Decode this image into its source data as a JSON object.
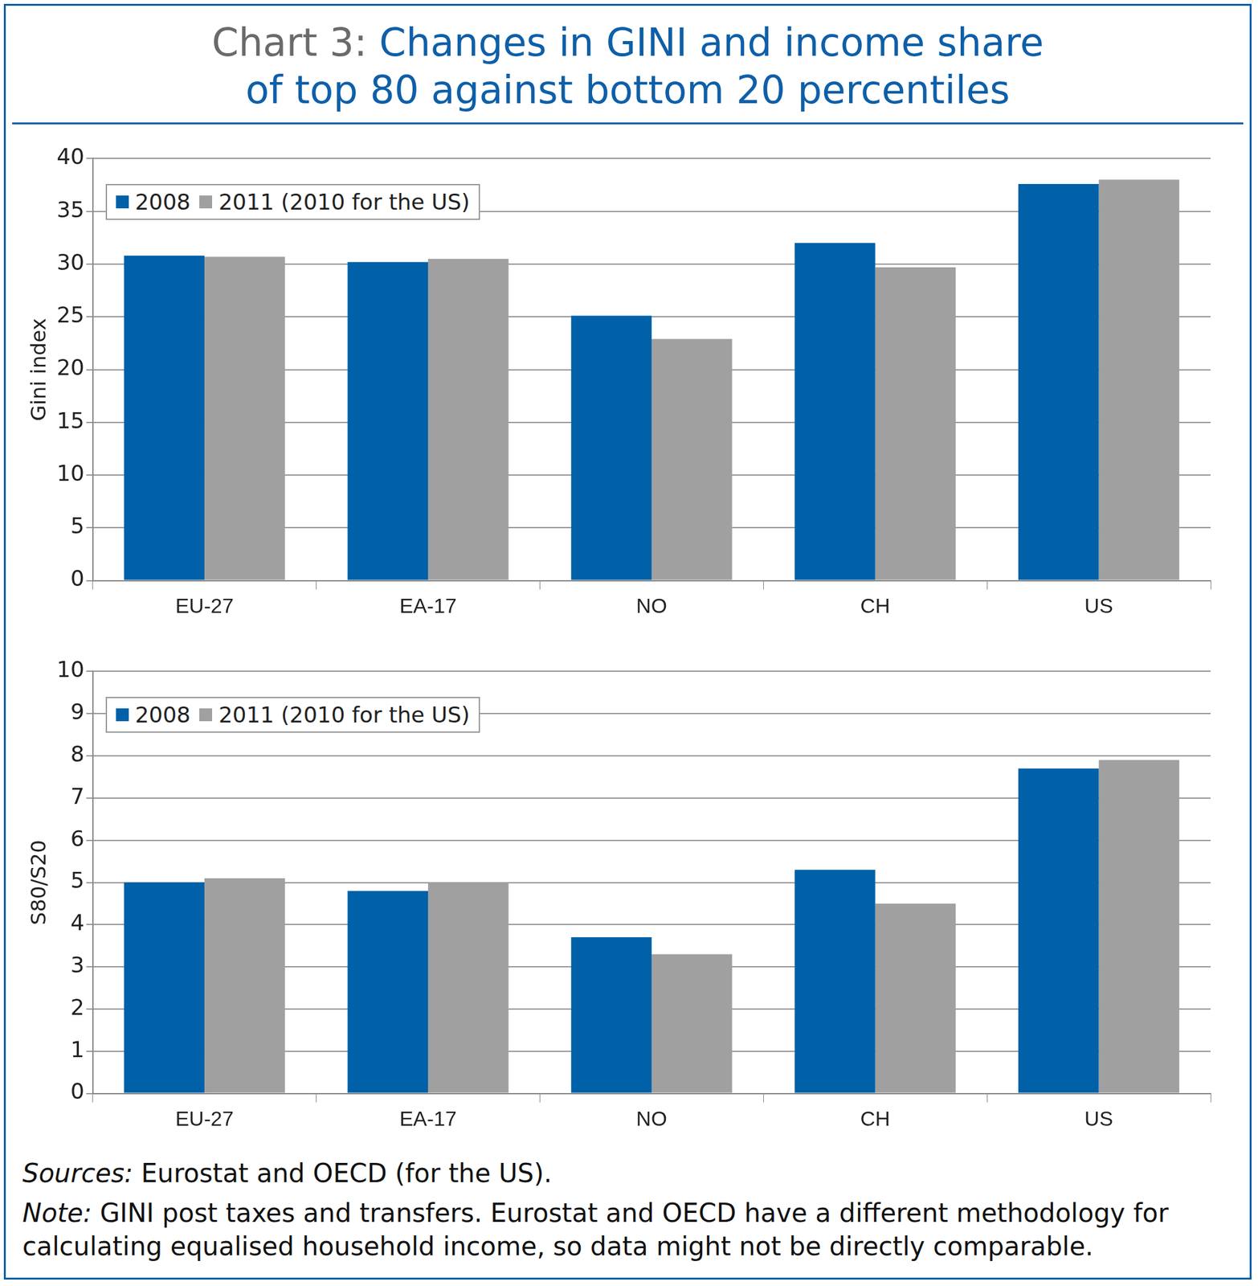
{
  "header": {
    "label": "Chart 3:",
    "title_lines": [
      "Changes in GINI and income share",
      "of top 80 against bottom 20 percentiles"
    ]
  },
  "chart_data": [
    {
      "type": "bar",
      "y_label": "Gini index",
      "categories": [
        "EU-27",
        "EA-17",
        "NO",
        "CH",
        "US"
      ],
      "series": [
        {
          "name": "2008",
          "color": "#0061a8",
          "values": [
            30.8,
            30.2,
            25.1,
            32.0,
            37.6
          ]
        },
        {
          "name": "2011 (2010 for the US)",
          "color": "#a0a0a0",
          "values": [
            30.7,
            30.5,
            22.9,
            29.7,
            38.0
          ]
        }
      ],
      "ylim": [
        0,
        40
      ],
      "yticks": [
        0,
        5,
        10,
        15,
        20,
        25,
        30,
        35,
        40
      ],
      "grid": true,
      "legend": "upper left"
    },
    {
      "type": "bar",
      "y_label": "S80/S20",
      "categories": [
        "EU-27",
        "EA-17",
        "NO",
        "CH",
        "US"
      ],
      "series": [
        {
          "name": "2008",
          "color": "#0061a8",
          "values": [
            5.0,
            4.8,
            3.7,
            5.3,
            7.7
          ]
        },
        {
          "name": "2011 (2010 for the US)",
          "color": "#a0a0a0",
          "values": [
            5.1,
            5.0,
            3.3,
            4.5,
            7.9
          ]
        }
      ],
      "ylim": [
        0,
        10
      ],
      "yticks": [
        0,
        1,
        2,
        3,
        4,
        5,
        6,
        7,
        8,
        9,
        10
      ],
      "grid": true,
      "legend": "upper left"
    }
  ],
  "footer": {
    "sources_label": "Sources:",
    "sources": "Eurostat and OECD (for the US).",
    "note_label": "Note:",
    "note": "GINI post taxes and transfers. Eurostat and OECD have a different methodology for calculating equalised household income, so data might not be directly comparable."
  }
}
